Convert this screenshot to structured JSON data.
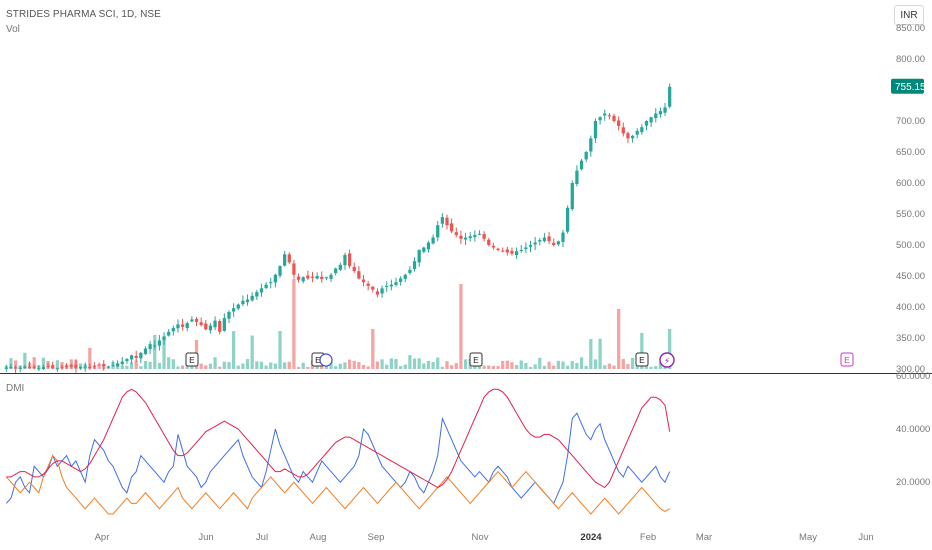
{
  "header": {
    "title": "STRIDES PHARMA SCI, 1D, NSE",
    "vol_label": "Vol",
    "currency_button": "INR"
  },
  "indicator": {
    "label": "DMI"
  },
  "colors": {
    "up": "#26a69a",
    "down": "#ef5350",
    "vol_up": "#8fd3c7",
    "vol_down": "#f5a3a3",
    "plus_di": "#3f6ee8",
    "minus_di": "#f57c1f",
    "adx": "#e0214d",
    "last_price_bg": "#00897b",
    "future_event": "#cc33cc"
  },
  "chart_data": [
    {
      "type": "candlestick",
      "title": "STRIDES PHARMA SCI, 1D, NSE",
      "y_ticks": [
        "300.00",
        "350.00",
        "400.00",
        "450.00",
        "500.00",
        "550.00",
        "600.00",
        "650.00",
        "700.00",
        "800.00",
        "850.00"
      ],
      "ylim": [
        300,
        850
      ],
      "last_price": "755.15",
      "x_ticks": [
        "Apr",
        "Jun",
        "Jul",
        "Aug",
        "Sep",
        "Nov",
        "2024",
        "Feb",
        "Mar",
        "May",
        "Jun"
      ],
      "closes": [
        302,
        303,
        301,
        302,
        304,
        303,
        302,
        301,
        303,
        304,
        302,
        301,
        303,
        305,
        304,
        302,
        303,
        304,
        303,
        305,
        307,
        305,
        304,
        306,
        309,
        312,
        316,
        322,
        318,
        326,
        333,
        340,
        338,
        346,
        352,
        360,
        366,
        372,
        368,
        374,
        380,
        376,
        371,
        364,
        370,
        378,
        360,
        382,
        392,
        398,
        404,
        410,
        412,
        418,
        424,
        430,
        436,
        440,
        452,
        466,
        485,
        472,
        452,
        444,
        448,
        446,
        447,
        450,
        445,
        448,
        452,
        462,
        468,
        484,
        466,
        458,
        446,
        440,
        434,
        428,
        420,
        430,
        434,
        436,
        440,
        446,
        452,
        460,
        474,
        492,
        496,
        504,
        512,
        532,
        545,
        532,
        522,
        516,
        510,
        512,
        514,
        516,
        518,
        510,
        500,
        496,
        492,
        490,
        488,
        486,
        490,
        492,
        496,
        500,
        504,
        508,
        512,
        506,
        500,
        506,
        520,
        560,
        600,
        620,
        636,
        650,
        672,
        700,
        706,
        712,
        708,
        700,
        692,
        680,
        672,
        676,
        684,
        690,
        700,
        706,
        712,
        716,
        722,
        755.15
      ],
      "volume_scale_note": "volume shown as relative bars",
      "earnings_markers": [
        "E",
        "E",
        "E",
        "E",
        "E"
      ],
      "dividend_marker": "⚡"
    },
    {
      "type": "line",
      "title": "DMI",
      "y_ticks": [
        "20.0000",
        "40.0000",
        "60.0000"
      ],
      "ylim": [
        5,
        60
      ],
      "series": [
        {
          "name": "",
          "color": "#3f6ee8",
          "values": [
            12,
            14,
            20,
            22,
            18,
            16,
            26,
            24,
            22,
            25,
            30,
            26,
            28,
            30,
            26,
            28,
            24,
            20,
            30,
            36,
            34,
            32,
            28,
            26,
            22,
            18,
            16,
            22,
            24,
            30,
            28,
            26,
            24,
            22,
            20,
            24,
            26,
            38,
            32,
            26,
            24,
            22,
            18,
            20,
            24,
            26,
            28,
            30,
            32,
            34,
            36,
            30,
            26,
            22,
            20,
            18,
            24,
            32,
            40,
            34,
            30,
            26,
            22,
            20,
            24,
            22,
            20,
            24,
            28,
            26,
            24,
            22,
            20,
            22,
            24,
            26,
            30,
            40,
            38,
            34,
            30,
            26,
            24,
            22,
            20,
            18,
            20,
            24,
            22,
            18,
            16,
            20,
            24,
            30,
            44,
            40,
            36,
            32,
            28,
            26,
            24,
            22,
            24,
            22,
            20,
            24,
            26,
            24,
            22,
            18,
            16,
            14,
            16,
            18,
            20,
            18,
            16,
            14,
            12,
            16,
            20,
            30,
            44,
            46,
            42,
            38,
            36,
            40,
            42,
            36,
            32,
            28,
            24,
            22,
            26,
            24,
            22,
            20,
            22,
            24,
            26,
            22,
            20,
            24
          ]
        },
        {
          "name": "",
          "color": "#f57c1f",
          "values": [
            22,
            20,
            18,
            16,
            18,
            20,
            18,
            16,
            22,
            26,
            30,
            28,
            22,
            18,
            16,
            14,
            12,
            10,
            12,
            14,
            12,
            10,
            8,
            8,
            10,
            12,
            14,
            12,
            12,
            14,
            16,
            14,
            12,
            10,
            12,
            14,
            16,
            18,
            14,
            12,
            10,
            12,
            14,
            16,
            14,
            12,
            10,
            12,
            14,
            16,
            14,
            12,
            10,
            14,
            16,
            18,
            20,
            22,
            20,
            18,
            16,
            18,
            20,
            18,
            16,
            14,
            12,
            14,
            16,
            18,
            16,
            14,
            12,
            10,
            12,
            14,
            16,
            18,
            16,
            14,
            12,
            14,
            16,
            18,
            20,
            18,
            16,
            14,
            12,
            10,
            12,
            14,
            16,
            18,
            20,
            22,
            20,
            18,
            16,
            14,
            12,
            14,
            16,
            18,
            20,
            22,
            24,
            22,
            20,
            18,
            20,
            22,
            24,
            22,
            20,
            18,
            16,
            14,
            12,
            10,
            12,
            14,
            16,
            14,
            12,
            10,
            8,
            10,
            12,
            14,
            12,
            10,
            8,
            10,
            12,
            14,
            16,
            18,
            16,
            14,
            12,
            10,
            9,
            10
          ]
        },
        {
          "name": "",
          "color": "#e0214d",
          "values": [
            22,
            22,
            23,
            24,
            24,
            23,
            22,
            22,
            23,
            25,
            27,
            28,
            28,
            27,
            26,
            25,
            24,
            25,
            27,
            30,
            33,
            36,
            40,
            44,
            48,
            52,
            54,
            55,
            54,
            52,
            50,
            47,
            44,
            41,
            38,
            35,
            32,
            30,
            30,
            31,
            33,
            35,
            37,
            39,
            40,
            41,
            42,
            43,
            42,
            41,
            40,
            38,
            36,
            34,
            32,
            30,
            28,
            26,
            24,
            24,
            25,
            24,
            23,
            22,
            22,
            23,
            25,
            27,
            29,
            31,
            33,
            35,
            36,
            37,
            37,
            36,
            35,
            34,
            33,
            32,
            31,
            30,
            29,
            28,
            27,
            26,
            25,
            24,
            23,
            22,
            21,
            20,
            19,
            18,
            19,
            21,
            24,
            28,
            32,
            36,
            40,
            44,
            48,
            52,
            54,
            55,
            55,
            54,
            52,
            49,
            46,
            43,
            40,
            38,
            37,
            37,
            38,
            38,
            37,
            36,
            34,
            32,
            30,
            28,
            26,
            24,
            22,
            20,
            19,
            18,
            20,
            24,
            28,
            32,
            36,
            40,
            44,
            48,
            50,
            52,
            52,
            51,
            49,
            39
          ]
        }
      ],
      "x_ticks": [
        "Apr",
        "Jun",
        "Jul",
        "Aug",
        "Sep",
        "Nov",
        "2024",
        "Feb",
        "Mar",
        "May",
        "Jun"
      ]
    }
  ]
}
